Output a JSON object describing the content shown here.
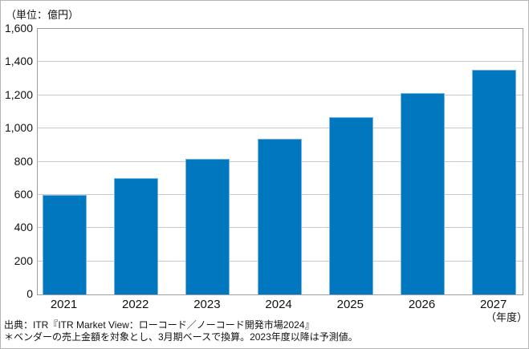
{
  "chart_data": {
    "type": "bar",
    "title": "",
    "unit_label": "（単位：億円）",
    "x_axis_label": "（年度）",
    "categories": [
      "2021",
      "2022",
      "2023",
      "2024",
      "2025",
      "2026",
      "2027"
    ],
    "values": [
      600,
      703,
      819,
      940,
      1070,
      1215,
      1353
    ],
    "ylim": [
      0,
      1600
    ],
    "ytick_step": 200,
    "grid": "horizontal",
    "legend": "none",
    "bar_color": "#0077be",
    "bar_border_color": "#75b7e2",
    "gridline_color": "#c9c9c9",
    "frame_color": "#9e9e9e"
  },
  "footer": {
    "source_line": "出典：ITR『ITR Market View：ローコード／ノーコード開発市場2024』",
    "note_line": "＊ベンダーの売上金額を対象とし、3月期ベースで換算。2023年度以降は予測値。"
  }
}
